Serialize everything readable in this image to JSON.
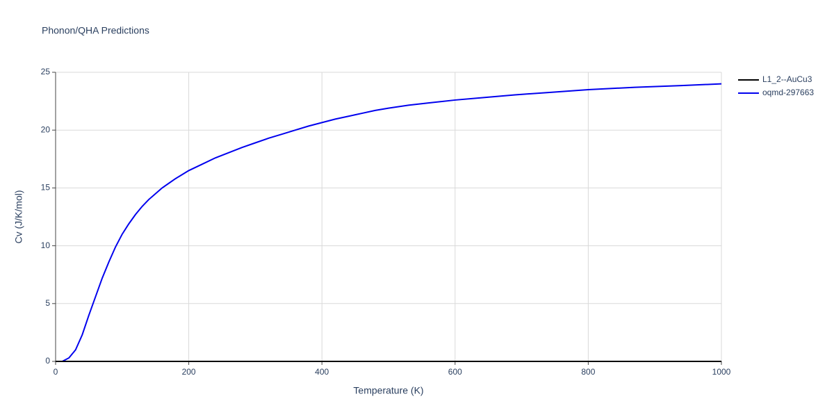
{
  "chart_data": {
    "type": "line",
    "title": "Phonon/QHA Predictions",
    "x_label": "Temperature (K)",
    "y_label": "Cv (J/K/mol)",
    "xlim": [
      0,
      1000
    ],
    "xticks": [
      0,
      200,
      400,
      600,
      800,
      1000
    ],
    "ylim": [
      0,
      25
    ],
    "yticks": [
      0,
      5,
      10,
      15,
      20,
      25
    ],
    "grid": true,
    "legend": "top-right",
    "series": [
      {
        "name": "L1_2--AuCu3",
        "color": "#000000",
        "x": [
          0,
          100,
          200,
          300,
          400,
          500,
          600,
          700,
          800,
          900,
          1000
        ],
        "values": [
          0,
          0,
          0,
          0,
          0,
          0,
          0,
          0,
          0,
          0,
          0
        ]
      },
      {
        "name": "oqmd-297663",
        "color": "#0000ee",
        "x": [
          0,
          10,
          20,
          30,
          40,
          50,
          60,
          70,
          80,
          90,
          100,
          110,
          120,
          130,
          140,
          150,
          160,
          170,
          180,
          190,
          200,
          220,
          240,
          260,
          280,
          300,
          320,
          340,
          360,
          380,
          400,
          420,
          440,
          460,
          480,
          500,
          530,
          560,
          600,
          640,
          690,
          740,
          800,
          870,
          940,
          1000
        ],
        "values": [
          0,
          0,
          0.3,
          1.0,
          2.3,
          4.0,
          5.6,
          7.2,
          8.6,
          9.9,
          11.0,
          11.9,
          12.7,
          13.4,
          14.0,
          14.5,
          15.0,
          15.4,
          15.8,
          16.15,
          16.5,
          17.05,
          17.6,
          18.05,
          18.5,
          18.9,
          19.3,
          19.65,
          20.0,
          20.35,
          20.65,
          20.95,
          21.2,
          21.45,
          21.7,
          21.9,
          22.15,
          22.35,
          22.6,
          22.8,
          23.05,
          23.25,
          23.5,
          23.7,
          23.85,
          24.0
        ]
      }
    ]
  }
}
